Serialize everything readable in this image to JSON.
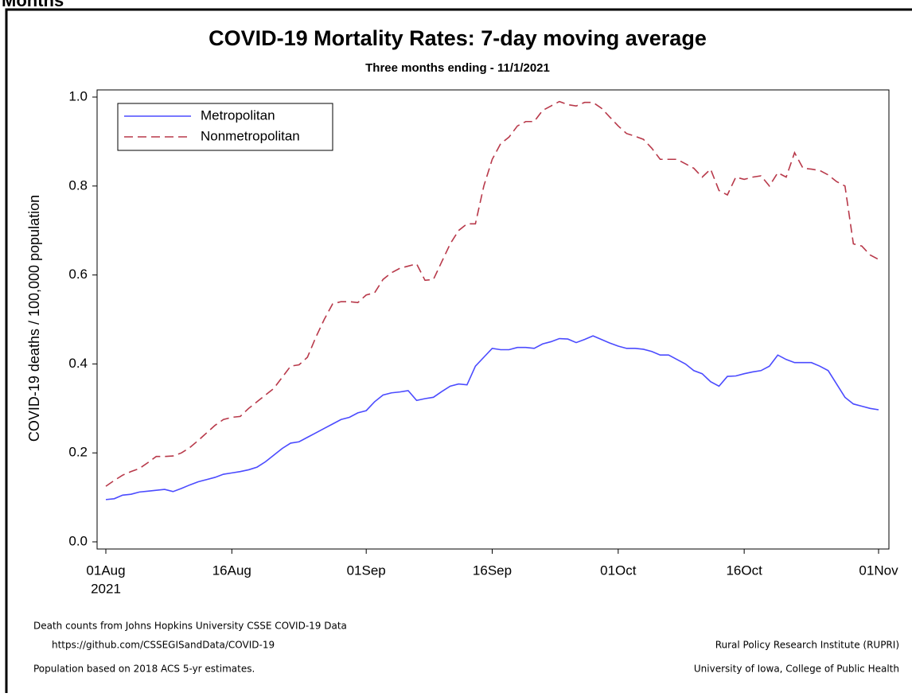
{
  "header": "Months",
  "chart_data": {
    "type": "line",
    "title": "COVID-19 Mortality Rates: 7-day moving average",
    "subtitle": "Three months ending - 11/1/2021",
    "y_label": "COVID-19 deaths / 100,000 population",
    "x_year_label": "2021",
    "x": [
      "2021-08-01",
      "2021-08-02",
      "2021-08-03",
      "2021-08-04",
      "2021-08-05",
      "2021-08-06",
      "2021-08-07",
      "2021-08-08",
      "2021-08-09",
      "2021-08-10",
      "2021-08-11",
      "2021-08-12",
      "2021-08-13",
      "2021-08-14",
      "2021-08-15",
      "2021-08-16",
      "2021-08-17",
      "2021-08-18",
      "2021-08-19",
      "2021-08-20",
      "2021-08-21",
      "2021-08-22",
      "2021-08-23",
      "2021-08-24",
      "2021-08-25",
      "2021-08-26",
      "2021-08-27",
      "2021-08-28",
      "2021-08-29",
      "2021-08-30",
      "2021-08-31",
      "2021-09-01",
      "2021-09-02",
      "2021-09-03",
      "2021-09-04",
      "2021-09-05",
      "2021-09-06",
      "2021-09-07",
      "2021-09-08",
      "2021-09-09",
      "2021-09-10",
      "2021-09-11",
      "2021-09-12",
      "2021-09-13",
      "2021-09-14",
      "2021-09-15",
      "2021-09-16",
      "2021-09-17",
      "2021-09-18",
      "2021-09-19",
      "2021-09-20",
      "2021-09-21",
      "2021-09-22",
      "2021-09-23",
      "2021-09-24",
      "2021-09-25",
      "2021-09-26",
      "2021-09-27",
      "2021-09-28",
      "2021-09-29",
      "2021-09-30",
      "2021-10-01",
      "2021-10-02",
      "2021-10-03",
      "2021-10-04",
      "2021-10-05",
      "2021-10-06",
      "2021-10-07",
      "2021-10-08",
      "2021-10-09",
      "2021-10-10",
      "2021-10-11",
      "2021-10-12",
      "2021-10-13",
      "2021-10-14",
      "2021-10-15",
      "2021-10-16",
      "2021-10-17",
      "2021-10-18",
      "2021-10-19",
      "2021-10-20",
      "2021-10-21",
      "2021-10-22",
      "2021-10-23",
      "2021-10-24",
      "2021-10-25",
      "2021-10-26",
      "2021-10-27",
      "2021-10-28",
      "2021-10-29",
      "2021-10-30",
      "2021-10-31",
      "2021-11-01"
    ],
    "series": [
      {
        "name": "Metropolitan",
        "color": "#4b4bff",
        "dash": "solid",
        "values": [
          0.095,
          0.097,
          0.105,
          0.107,
          0.112,
          0.114,
          0.116,
          0.118,
          0.113,
          0.12,
          0.128,
          0.135,
          0.14,
          0.145,
          0.152,
          0.155,
          0.158,
          0.162,
          0.168,
          0.18,
          0.195,
          0.21,
          0.222,
          0.225,
          0.235,
          0.245,
          0.255,
          0.265,
          0.275,
          0.28,
          0.29,
          0.295,
          0.315,
          0.33,
          0.335,
          0.337,
          0.34,
          0.318,
          0.322,
          0.325,
          0.338,
          0.35,
          0.355,
          0.353,
          0.395,
          0.415,
          0.435,
          0.432,
          0.432,
          0.437,
          0.437,
          0.435,
          0.445,
          0.45,
          0.457,
          0.456,
          0.448,
          0.455,
          0.463,
          0.455,
          0.447,
          0.44,
          0.435,
          0.435,
          0.433,
          0.428,
          0.42,
          0.42,
          0.41,
          0.4,
          0.385,
          0.378,
          0.36,
          0.35,
          0.372,
          0.373,
          0.378,
          0.382,
          0.385,
          0.395,
          0.42,
          0.41,
          0.403,
          0.403,
          0.403,
          0.395,
          0.385,
          0.355,
          0.325,
          0.31,
          0.305,
          0.3,
          0.297
        ]
      },
      {
        "name": "Nonmetropolitan",
        "color": "#b8394a",
        "dash": "dashed",
        "values": [
          0.125,
          0.138,
          0.15,
          0.158,
          0.165,
          0.178,
          0.192,
          0.192,
          0.193,
          0.2,
          0.212,
          0.228,
          0.245,
          0.262,
          0.275,
          0.28,
          0.282,
          0.3,
          0.315,
          0.33,
          0.345,
          0.37,
          0.395,
          0.398,
          0.415,
          0.46,
          0.5,
          0.535,
          0.54,
          0.54,
          0.538,
          0.555,
          0.56,
          0.59,
          0.605,
          0.615,
          0.62,
          0.625,
          0.588,
          0.59,
          0.63,
          0.67,
          0.7,
          0.715,
          0.715,
          0.8,
          0.86,
          0.895,
          0.91,
          0.935,
          0.945,
          0.945,
          0.97,
          0.98,
          0.99,
          0.983,
          0.98,
          0.988,
          0.988,
          0.975,
          0.955,
          0.935,
          0.918,
          0.912,
          0.905,
          0.885,
          0.86,
          0.86,
          0.86,
          0.85,
          0.84,
          0.82,
          0.838,
          0.79,
          0.78,
          0.82,
          0.815,
          0.82,
          0.823,
          0.8,
          0.83,
          0.82,
          0.875,
          0.84,
          0.838,
          0.835,
          0.825,
          0.81,
          0.8,
          0.67,
          0.665,
          0.645,
          0.635
        ]
      }
    ],
    "xlim": [
      "2021-08-01",
      "2021-11-01"
    ],
    "xticks": [
      {
        "value": "2021-08-01",
        "label": "01Aug"
      },
      {
        "value": "2021-08-16",
        "label": "16Aug"
      },
      {
        "value": "2021-09-01",
        "label": "01Sep"
      },
      {
        "value": "2021-09-16",
        "label": "16Sep"
      },
      {
        "value": "2021-10-01",
        "label": "01Oct"
      },
      {
        "value": "2021-10-16",
        "label": "16Oct"
      },
      {
        "value": "2021-11-01",
        "label": "01Nov"
      }
    ],
    "ylim": [
      0,
      1
    ],
    "yticks": [
      {
        "value": 0,
        "label": "0.0"
      },
      0.2,
      0.4,
      0.6,
      0.8,
      {
        "value": 1,
        "label": "1.0"
      }
    ],
    "legend": "top-left",
    "notes_left": [
      "Death counts from Johns Hopkins University CSSE COVID-19 Data",
      "https://github.com/CSSEGISandData/COVID-19",
      "Population based on 2018 ACS 5-yr estimates."
    ],
    "notes_right": [
      "Rural Policy Research Institute (RUPRI)",
      "University of Iowa, College of Public Health"
    ]
  }
}
